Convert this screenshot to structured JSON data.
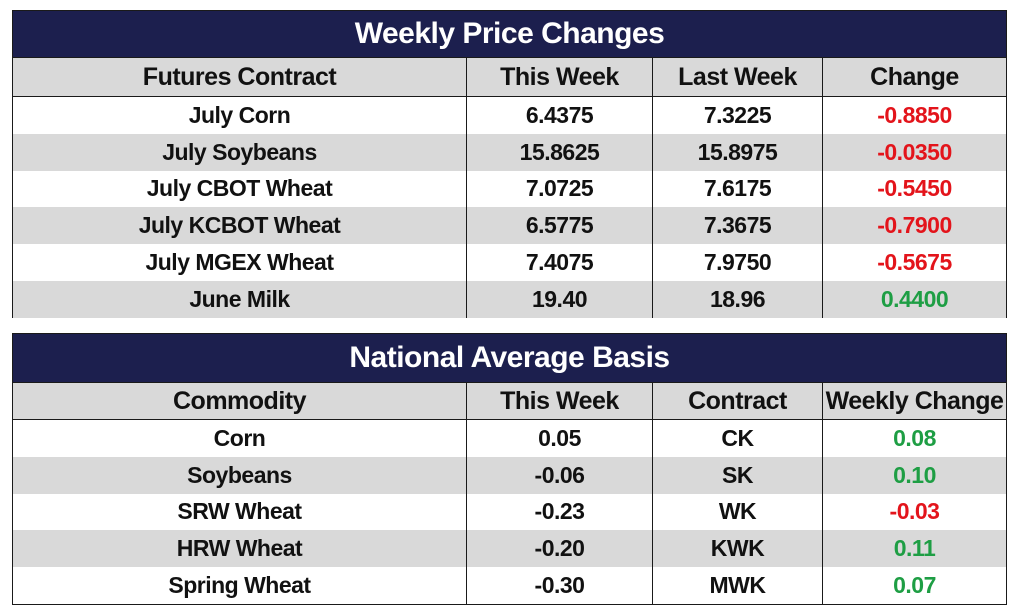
{
  "price_changes": {
    "title": "Weekly Price Changes",
    "headers": [
      "Futures Contract",
      "This Week",
      "Last Week",
      "Change"
    ],
    "rows": [
      {
        "contract": "July Corn",
        "this_week": "6.4375",
        "last_week": "7.3225",
        "change": "-0.8850"
      },
      {
        "contract": "July Soybeans",
        "this_week": "15.8625",
        "last_week": "15.8975",
        "change": "-0.0350"
      },
      {
        "contract": "July CBOT Wheat",
        "this_week": "7.0725",
        "last_week": "7.6175",
        "change": "-0.5450"
      },
      {
        "contract": "July KCBOT Wheat",
        "this_week": "6.5775",
        "last_week": "7.3675",
        "change": "-0.7900"
      },
      {
        "contract": "July MGEX Wheat",
        "this_week": "7.4075",
        "last_week": "7.9750",
        "change": "-0.5675"
      },
      {
        "contract": "June Milk",
        "this_week": "19.40",
        "last_week": "18.96",
        "change": "0.4400"
      }
    ]
  },
  "basis": {
    "title": "National Average Basis",
    "headers": [
      "Commodity",
      "This Week",
      "Contract",
      "Weekly Change"
    ],
    "rows": [
      {
        "commodity": "Corn",
        "this_week": "0.05",
        "contract": "CK",
        "change": "0.08"
      },
      {
        "commodity": "Soybeans",
        "this_week": "-0.06",
        "contract": "SK",
        "change": "0.10"
      },
      {
        "commodity": "SRW Wheat",
        "this_week": "-0.23",
        "contract": "WK",
        "change": "-0.03"
      },
      {
        "commodity": "HRW Wheat",
        "this_week": "-0.20",
        "contract": "KWK",
        "change": "0.11"
      },
      {
        "commodity": "Spring Wheat",
        "this_week": "-0.30",
        "contract": "MWK",
        "change": "0.07"
      }
    ]
  },
  "colors": {
    "title_bg": "#1c1f4e",
    "stripe": "#d9d9d9",
    "negative": "#e3141b",
    "positive": "#1e9e44"
  }
}
